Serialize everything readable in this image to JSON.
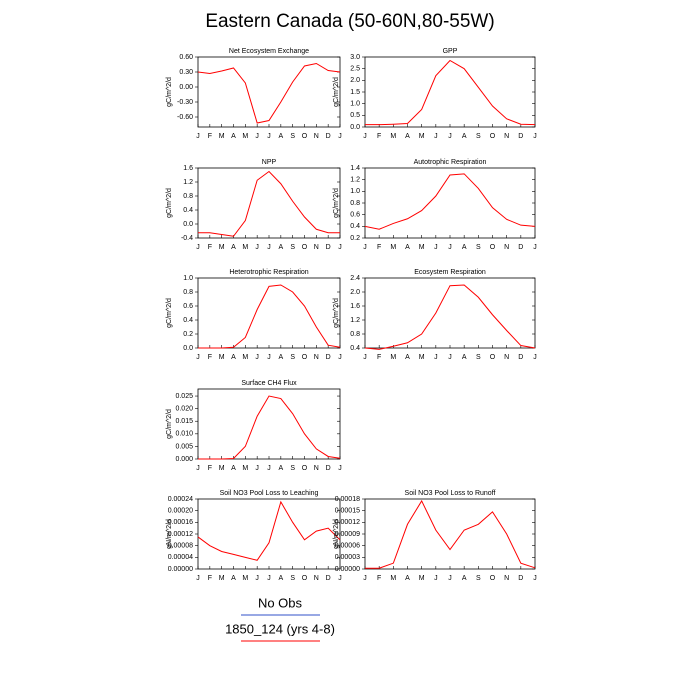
{
  "title": "Eastern Canada (50-60N,80-55W)",
  "legend": [
    {
      "label": "No Obs",
      "color": "#3050c8"
    },
    {
      "label": "1850_124 (yrs 4-8)",
      "color": "#ff0000"
    }
  ],
  "chart_data": [
    {
      "type": "line",
      "title": "Net Ecosystem Exchange",
      "ylabel": "gC/m^2/d",
      "categories": [
        "J",
        "F",
        "M",
        "A",
        "M",
        "J",
        "J",
        "A",
        "S",
        "O",
        "N",
        "D",
        "J"
      ],
      "series": [
        {
          "color": "#ff0000",
          "values": [
            0.3,
            0.27,
            0.32,
            0.38,
            0.08,
            -0.72,
            -0.67,
            -0.3,
            0.1,
            0.42,
            0.47,
            0.33,
            0.3
          ]
        }
      ],
      "ylim": [
        -0.8,
        0.6
      ],
      "yticks": [
        {
          "value": -0.6,
          "label": "-0.60"
        },
        {
          "value": -0.3,
          "label": "-0.30"
        },
        {
          "value": 0,
          "label": "0.00"
        },
        {
          "value": 0.3,
          "label": "0.30"
        },
        {
          "value": 0.6,
          "label": "0.60"
        }
      ]
    },
    {
      "type": "line",
      "title": "GPP",
      "ylabel": "gC/m^2/d",
      "categories": [
        "J",
        "F",
        "M",
        "A",
        "M",
        "J",
        "J",
        "A",
        "S",
        "O",
        "N",
        "D",
        "J"
      ],
      "series": [
        {
          "color": "#ff0000",
          "values": [
            0.1,
            0.1,
            0.12,
            0.15,
            0.75,
            2.2,
            2.85,
            2.5,
            1.7,
            0.9,
            0.35,
            0.12,
            0.1
          ]
        }
      ],
      "ylim": [
        0,
        3
      ],
      "yticks": [
        {
          "value": 0,
          "label": "0.0"
        },
        0.5,
        {
          "value": 1,
          "label": "1.0"
        },
        1.5,
        {
          "value": 2,
          "label": "2.0"
        },
        2.5,
        {
          "value": 3,
          "label": "3.0"
        }
      ]
    },
    {
      "type": "line",
      "title": "NPP",
      "ylabel": "gC/m^2/d",
      "categories": [
        "J",
        "F",
        "M",
        "A",
        "M",
        "J",
        "J",
        "A",
        "S",
        "O",
        "N",
        "D",
        "J"
      ],
      "series": [
        {
          "color": "#ff0000",
          "values": [
            -0.25,
            -0.25,
            -0.3,
            -0.35,
            0.1,
            1.25,
            1.5,
            1.15,
            0.65,
            0.2,
            -0.15,
            -0.25,
            -0.25
          ]
        }
      ],
      "ylim": [
        -0.4,
        1.6
      ],
      "yticks": [
        -0.4,
        {
          "value": 0,
          "label": "0.0"
        },
        0.4,
        0.8,
        1.2,
        1.6
      ]
    },
    {
      "type": "line",
      "title": "Autotrophic Respiration",
      "ylabel": "gC/m^2/d",
      "categories": [
        "J",
        "F",
        "M",
        "A",
        "M",
        "J",
        "J",
        "A",
        "S",
        "O",
        "N",
        "D",
        "J"
      ],
      "series": [
        {
          "color": "#ff0000",
          "values": [
            0.4,
            0.35,
            0.45,
            0.53,
            0.67,
            0.92,
            1.28,
            1.3,
            1.05,
            0.72,
            0.52,
            0.42,
            0.4
          ]
        }
      ],
      "ylim": [
        0.2,
        1.4
      ],
      "yticks": [
        0.2,
        0.4,
        0.6,
        0.8,
        {
          "value": 1,
          "label": "1.0"
        },
        1.2,
        1.4
      ]
    },
    {
      "type": "line",
      "title": "Heterotrophic Respiration",
      "ylabel": "gC/m^2/d",
      "categories": [
        "J",
        "F",
        "M",
        "A",
        "M",
        "J",
        "J",
        "A",
        "S",
        "O",
        "N",
        "D",
        "J"
      ],
      "series": [
        {
          "color": "#ff0000",
          "values": [
            0,
            0,
            0,
            0.01,
            0.15,
            0.55,
            0.88,
            0.9,
            0.8,
            0.6,
            0.3,
            0.04,
            0.01
          ]
        }
      ],
      "ylim": [
        0,
        1
      ],
      "yticks": [
        {
          "value": 0,
          "label": "0.0"
        },
        0.2,
        0.4,
        0.6,
        0.8,
        {
          "value": 1,
          "label": "1.0"
        }
      ]
    },
    {
      "type": "line",
      "title": "Ecosystem Respiration",
      "ylabel": "gC/m^2/d",
      "categories": [
        "J",
        "F",
        "M",
        "A",
        "M",
        "J",
        "J",
        "A",
        "S",
        "O",
        "N",
        "D",
        "J"
      ],
      "series": [
        {
          "color": "#ff0000",
          "values": [
            0.4,
            0.36,
            0.45,
            0.55,
            0.8,
            1.4,
            2.18,
            2.2,
            1.85,
            1.35,
            0.9,
            0.47,
            0.4
          ]
        }
      ],
      "ylim": [
        0.4,
        2.4
      ],
      "yticks": [
        0.4,
        0.8,
        1.2,
        1.6,
        {
          "value": 2,
          "label": "2.0"
        },
        2.4
      ]
    },
    {
      "type": "line",
      "title": "Surface CH4 Flux",
      "ylabel": "gC/m^2/d",
      "categories": [
        "J",
        "F",
        "M",
        "A",
        "M",
        "J",
        "J",
        "A",
        "S",
        "O",
        "N",
        "D",
        "J"
      ],
      "series": [
        {
          "color": "#ff0000",
          "values": [
            0,
            0,
            0,
            0.0002,
            0.005,
            0.017,
            0.025,
            0.024,
            0.018,
            0.01,
            0.004,
            0.001,
            0.0003
          ]
        }
      ],
      "ylim": [
        0,
        0.0278
      ],
      "yticks": [
        {
          "value": 0,
          "label": "0.000"
        },
        0.005,
        {
          "value": 0.01,
          "label": "0.010"
        },
        0.015,
        {
          "value": 0.02,
          "label": "0.020"
        },
        0.025
      ]
    },
    {
      "type": "line",
      "title": "Soil NO3 Pool Loss to Leaching",
      "ylabel": "gN/m^2/d",
      "categories": [
        "J",
        "F",
        "M",
        "A",
        "M",
        "J",
        "J",
        "A",
        "S",
        "O",
        "N",
        "D",
        "J"
      ],
      "series": [
        {
          "color": "#ff0000",
          "values": [
            0.00011,
            8e-05,
            6e-05,
            5e-05,
            4e-05,
            3e-05,
            9e-05,
            0.00023,
            0.00016,
            0.0001,
            0.00013,
            0.00014,
            0.0001
          ]
        }
      ],
      "ylim": [
        0,
        0.00024
      ],
      "yticks": [
        {
          "value": 0,
          "label": "0.00000"
        },
        4e-05,
        8e-05,
        0.00012,
        0.00016,
        {
          "value": 0.0002,
          "label": "0.00020"
        },
        0.00024
      ]
    },
    {
      "type": "line",
      "title": "Soil NO3 Pool Loss to Runoff",
      "ylabel": "gN/m^2/d",
      "categories": [
        "J",
        "F",
        "M",
        "A",
        "M",
        "J",
        "J",
        "A",
        "S",
        "O",
        "N",
        "D",
        "J"
      ],
      "series": [
        {
          "color": "#ff0000",
          "values": [
            2e-06,
            2e-06,
            1.5e-05,
            0.000115,
            0.000175,
            0.0001,
            5e-05,
            0.0001,
            0.000115,
            0.000147,
            9e-05,
            1.5e-05,
            3e-06
          ]
        }
      ],
      "ylim": [
        0,
        0.00018
      ],
      "yticks": [
        {
          "value": 0,
          "label": "0.00000"
        },
        3e-05,
        6e-05,
        9e-05,
        0.00012,
        0.00015,
        0.00018
      ]
    }
  ]
}
